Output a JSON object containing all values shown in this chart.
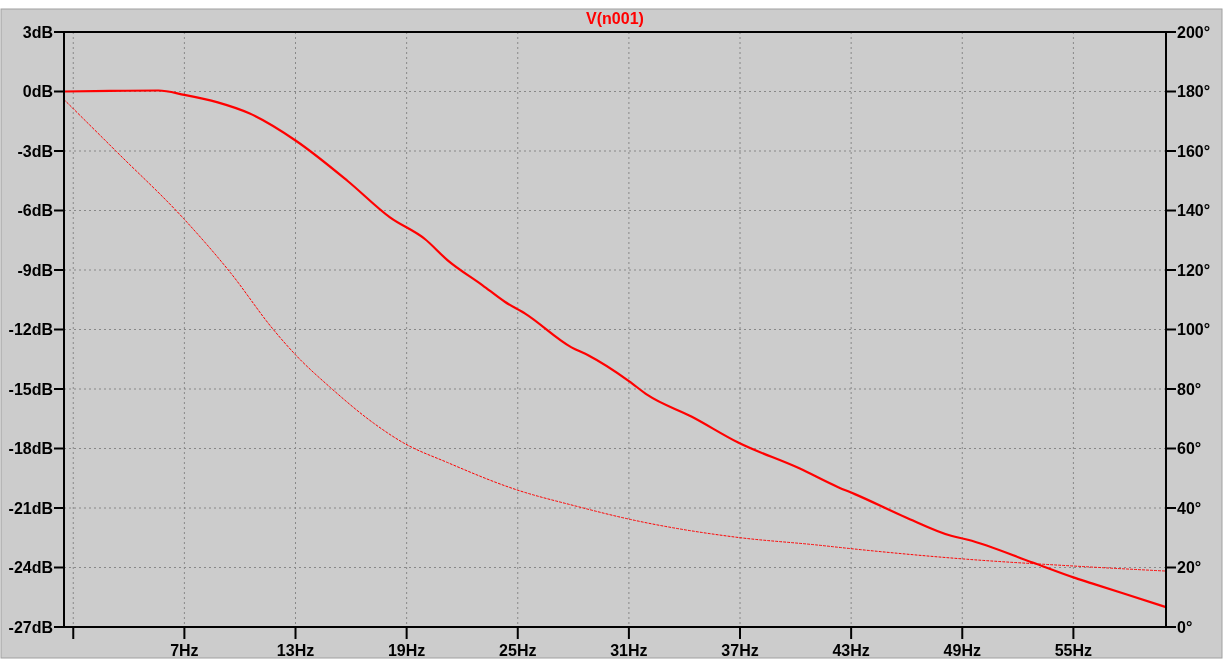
{
  "chart_data": {
    "type": "line",
    "title": "V(n001)",
    "grid": true,
    "xlim": [
      0.5,
      60
    ],
    "xticks": [
      {
        "value": 1,
        "label": null
      },
      {
        "value": 7,
        "label": "7Hz"
      },
      {
        "value": 13,
        "label": "13Hz"
      },
      {
        "value": 19,
        "label": "19Hz"
      },
      {
        "value": 25,
        "label": "25Hz"
      },
      {
        "value": 31,
        "label": "31Hz"
      },
      {
        "value": 37,
        "label": "37Hz"
      },
      {
        "value": 43,
        "label": "43Hz"
      },
      {
        "value": 49,
        "label": "49Hz"
      },
      {
        "value": 55,
        "label": "55Hz"
      }
    ],
    "ylim": [
      -27,
      3
    ],
    "yticks": [
      {
        "value": 3,
        "label": "3dB"
      },
      {
        "value": 0,
        "label": "0dB"
      },
      {
        "value": -3,
        "label": "-3dB"
      },
      {
        "value": -6,
        "label": "-6dB"
      },
      {
        "value": -9,
        "label": "-9dB"
      },
      {
        "value": -12,
        "label": "-12dB"
      },
      {
        "value": -15,
        "label": "-15dB"
      },
      {
        "value": -18,
        "label": "-18dB"
      },
      {
        "value": -21,
        "label": "-21dB"
      },
      {
        "value": -24,
        "label": "-24dB"
      },
      {
        "value": -27,
        "label": "-27dB"
      }
    ],
    "y2lim": [
      0,
      200
    ],
    "y2ticks": [
      {
        "value": 200,
        "label": "200°"
      },
      {
        "value": 180,
        "label": "180°"
      },
      {
        "value": 160,
        "label": "160°"
      },
      {
        "value": 140,
        "label": "140°"
      },
      {
        "value": 120,
        "label": "120°"
      },
      {
        "value": 100,
        "label": "100°"
      },
      {
        "value": 80,
        "label": "80°"
      },
      {
        "value": 60,
        "label": "60°"
      },
      {
        "value": 40,
        "label": "40°"
      },
      {
        "value": 20,
        "label": "20°"
      },
      {
        "value": 0,
        "label": "0°"
      }
    ],
    "series": [
      {
        "color": "#ff0000",
        "line_style": "solid",
        "x": [
          0.5,
          3,
          5.6,
          7,
          8.8,
          10.5,
          13,
          15.8,
          18.1,
          20,
          21.2,
          23.1,
          24.3,
          25.4,
          27.9,
          28.8,
          31,
          32,
          34.4,
          36.9,
          40.2,
          42.3,
          43.2,
          45.9,
          48.4,
          49.3,
          52.8,
          55,
          56,
          60
        ],
        "values": [
          0,
          0.03,
          0.05,
          -0.17,
          -0.55,
          -1.1,
          -2.47,
          -4.5,
          -6.35,
          -7.45,
          -8.5,
          -9.77,
          -10.6,
          -11.2,
          -12.9,
          -13.3,
          -14.6,
          -15.3,
          -16.4,
          -17.7,
          -19,
          -19.95,
          -20.3,
          -21.45,
          -22.4,
          -22.6,
          -23.75,
          -24.5,
          -24.8,
          -26
        ]
      },
      {
        "color": "#ff0000",
        "line_style": "dotted",
        "axis": "y2",
        "x": [
          0.5,
          3.3,
          7,
          9.5,
          11.8,
          13,
          14.9,
          17.2,
          18.8,
          21.2,
          24.9,
          28.1,
          31.2,
          36.9,
          41.1,
          43.2,
          49,
          55,
          60
        ],
        "values": [
          177.3,
          160,
          137,
          119,
          100,
          91.5,
          80.4,
          68.6,
          62,
          55.3,
          46.2,
          40.7,
          36,
          30.1,
          27.6,
          26.2,
          22.9,
          20.5,
          18.8
        ]
      }
    ]
  }
}
